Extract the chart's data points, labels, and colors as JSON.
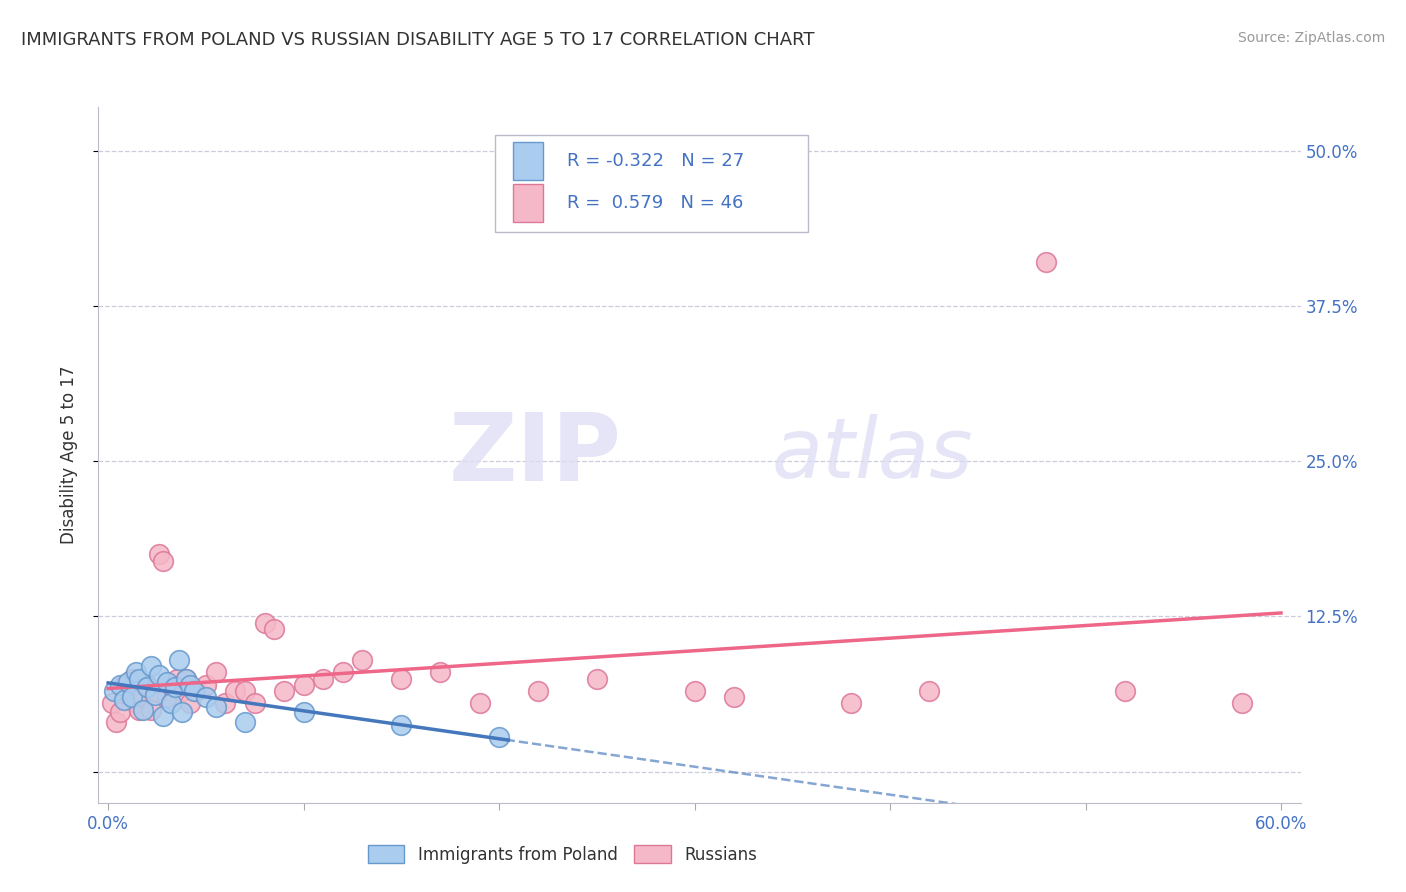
{
  "title": "IMMIGRANTS FROM POLAND VS RUSSIAN DISABILITY AGE 5 TO 17 CORRELATION CHART",
  "source": "Source: ZipAtlas.com",
  "ylabel": "Disability Age 5 to 17",
  "xlim": [
    -0.005,
    0.61
  ],
  "ylim": [
    -0.025,
    0.535
  ],
  "poland_color": "#aaccee",
  "poland_edge_color": "#6699CC",
  "poland_line_color": "#4477BB",
  "russia_color": "#f5b8c8",
  "russia_edge_color": "#dd7799",
  "russia_line_color": "#ee6688",
  "R_poland": -0.322,
  "N_poland": 27,
  "R_russia": 0.579,
  "N_russia": 46,
  "watermark_zip": "ZIP",
  "watermark_atlas": "atlas",
  "bg_color": "#ffffff",
  "grid_color": "#ccccdd",
  "axis_label_color": "#4472C4",
  "text_color": "#333333",
  "poland_scatter_x": [
    0.003,
    0.006,
    0.008,
    0.01,
    0.012,
    0.014,
    0.016,
    0.018,
    0.02,
    0.022,
    0.024,
    0.026,
    0.028,
    0.03,
    0.032,
    0.034,
    0.036,
    0.038,
    0.04,
    0.042,
    0.044,
    0.05,
    0.055,
    0.07,
    0.1,
    0.15,
    0.2
  ],
  "poland_scatter_y": [
    0.065,
    0.07,
    0.058,
    0.072,
    0.06,
    0.08,
    0.075,
    0.05,
    0.068,
    0.085,
    0.062,
    0.078,
    0.045,
    0.072,
    0.055,
    0.068,
    0.09,
    0.048,
    0.075,
    0.07,
    0.065,
    0.06,
    0.052,
    0.04,
    0.048,
    0.038,
    0.028
  ],
  "russia_scatter_x": [
    0.002,
    0.004,
    0.006,
    0.008,
    0.01,
    0.012,
    0.014,
    0.016,
    0.018,
    0.02,
    0.022,
    0.024,
    0.026,
    0.028,
    0.03,
    0.032,
    0.035,
    0.038,
    0.04,
    0.042,
    0.045,
    0.05,
    0.055,
    0.06,
    0.065,
    0.07,
    0.075,
    0.08,
    0.085,
    0.09,
    0.1,
    0.11,
    0.12,
    0.13,
    0.15,
    0.17,
    0.19,
    0.22,
    0.25,
    0.3,
    0.32,
    0.38,
    0.42,
    0.48,
    0.52,
    0.58
  ],
  "russia_scatter_y": [
    0.055,
    0.04,
    0.048,
    0.07,
    0.065,
    0.075,
    0.055,
    0.05,
    0.06,
    0.07,
    0.05,
    0.065,
    0.175,
    0.17,
    0.06,
    0.07,
    0.075,
    0.065,
    0.075,
    0.055,
    0.065,
    0.07,
    0.08,
    0.055,
    0.065,
    0.065,
    0.055,
    0.12,
    0.115,
    0.065,
    0.07,
    0.075,
    0.08,
    0.09,
    0.075,
    0.08,
    0.055,
    0.065,
    0.075,
    0.065,
    0.06,
    0.055,
    0.065,
    0.41,
    0.065,
    0.055
  ],
  "ytick_positions": [
    0.0,
    0.125,
    0.25,
    0.375,
    0.5
  ],
  "ytick_labels_right": [
    "",
    "12.5%",
    "25.0%",
    "37.5%",
    "50.0%"
  ],
  "xtick_positions": [
    0.0,
    0.1,
    0.2,
    0.3,
    0.4,
    0.5,
    0.6
  ],
  "xtick_labels": [
    "0.0%",
    "",
    "",
    "",
    "",
    "",
    "60.0%"
  ]
}
